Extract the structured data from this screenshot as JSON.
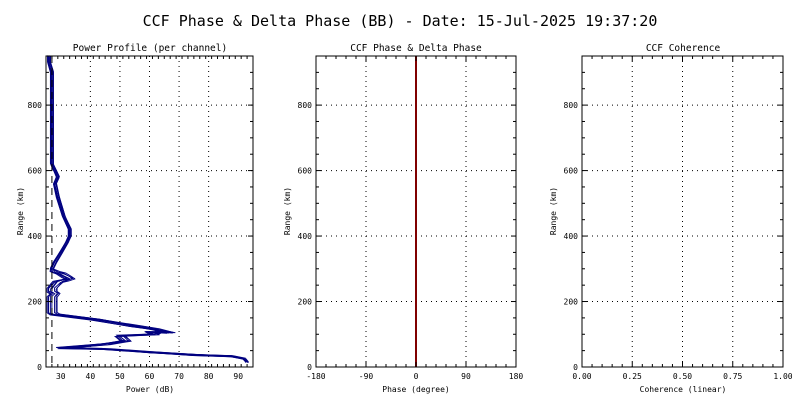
{
  "title": "CCF Phase & Delta Phase (BB) - Date: 15-Jul-2025 19:37:20",
  "chart_data": [
    {
      "type": "line",
      "title": "Power Profile (per channel)",
      "xlabel": "Power (dB)",
      "ylabel": "Range (km)",
      "xlim": [
        25,
        95
      ],
      "ylim": [
        0,
        950
      ],
      "xticks": [
        30,
        40,
        50,
        60,
        70,
        80,
        90
      ],
      "yticks": [
        0,
        200,
        400,
        600,
        800
      ],
      "grid": true,
      "line_color": "#000080",
      "channel_count": 8,
      "profile": {
        "x": [
          93,
          92,
          88,
          75,
          60,
          45,
          30,
          45,
          52,
          50,
          62,
          60,
          67,
          62,
          55,
          42,
          28,
          27,
          27,
          27,
          27,
          28,
          27,
          27,
          28,
          29,
          31,
          33,
          32,
          30,
          28,
          27,
          28,
          30,
          32,
          33,
          33,
          32,
          31,
          30,
          29,
          28,
          29,
          28,
          27,
          27,
          27,
          27,
          27,
          26,
          26
        ],
        "y": [
          15,
          25,
          33,
          37,
          45,
          55,
          58,
          70,
          80,
          95,
          100,
          107,
          105,
          115,
          125,
          145,
          160,
          165,
          200,
          210,
          215,
          225,
          230,
          240,
          250,
          260,
          265,
          270,
          275,
          285,
          290,
          300,
          320,
          350,
          380,
          400,
          420,
          440,
          460,
          490,
          520,
          560,
          580,
          600,
          620,
          700,
          800,
          850,
          900,
          930,
          950
        ]
      }
    },
    {
      "type": "line",
      "title": "CCF Phase & Delta Phase",
      "xlabel": "Phase (degree)",
      "ylabel": "Range (km)",
      "xlim": [
        -180,
        180
      ],
      "ylim": [
        0,
        950
      ],
      "xticks": [
        -180,
        -90,
        0,
        90,
        180
      ],
      "yticks": [
        0,
        200,
        400,
        600,
        800
      ],
      "grid": true,
      "phase_line": {
        "x": 0,
        "color": "#800000"
      }
    },
    {
      "type": "line",
      "title": "CCF Coherence",
      "xlabel": "Coherence (linear)",
      "ylabel": "Range (km)",
      "xlim": [
        0,
        1
      ],
      "ylim": [
        0,
        950
      ],
      "xticks": [
        0,
        0.25,
        0.5,
        0.75,
        1
      ],
      "xtick_labels": [
        "0.00",
        "0.25",
        "0.50",
        "0.75",
        "1.00"
      ],
      "yticks": [
        0,
        200,
        400,
        600,
        800
      ],
      "grid": true
    }
  ]
}
